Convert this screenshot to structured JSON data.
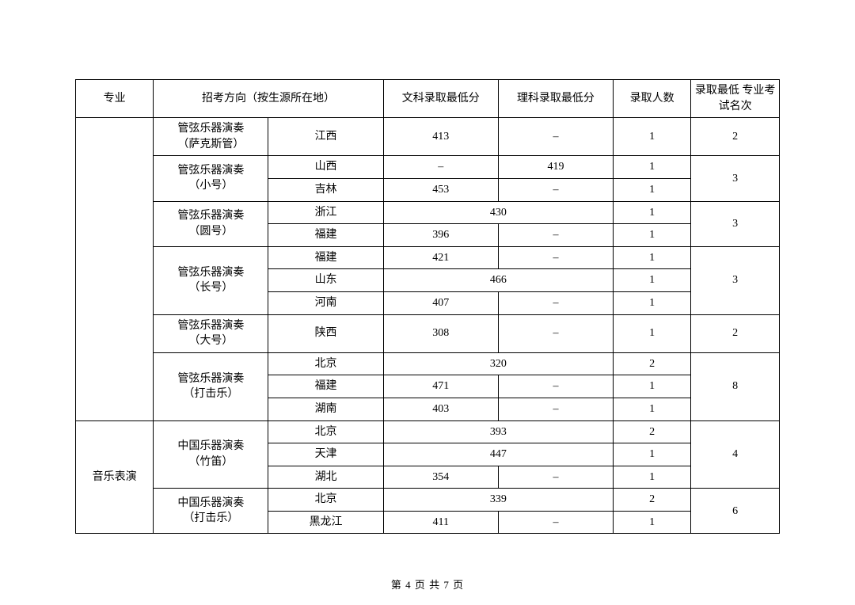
{
  "header": {
    "major": "专业",
    "direction": "招考方向（按生源所在地）",
    "wenke": "文科录取最低分",
    "like": "理科录取最低分",
    "admit": "录取人数",
    "rank": "录取最低\n专业考试名次"
  },
  "groups": [
    {
      "name": "管弦乐器演奏\n（萨克斯管）",
      "rank": "2",
      "rows": [
        {
          "prov": "江西",
          "wen": "413",
          "li": "–",
          "merged": false,
          "num": "1"
        }
      ]
    },
    {
      "name": "管弦乐器演奏\n（小号）",
      "rank": "3",
      "rows": [
        {
          "prov": "山西",
          "wen": "–",
          "li": "419",
          "merged": false,
          "num": "1"
        },
        {
          "prov": "吉林",
          "wen": "453",
          "li": "–",
          "merged": false,
          "num": "1"
        }
      ]
    },
    {
      "name": "管弦乐器演奏\n（圆号）",
      "rank": "3",
      "rows": [
        {
          "prov": "浙江",
          "wen": "430",
          "li": "",
          "merged": true,
          "num": "1"
        },
        {
          "prov": "福建",
          "wen": "396",
          "li": "–",
          "merged": false,
          "num": "1"
        }
      ]
    },
    {
      "name": "管弦乐器演奏\n（长号）",
      "rank": "3",
      "rows": [
        {
          "prov": "福建",
          "wen": "421",
          "li": "–",
          "merged": false,
          "num": "1"
        },
        {
          "prov": "山东",
          "wen": "466",
          "li": "",
          "merged": true,
          "num": "1"
        },
        {
          "prov": "河南",
          "wen": "407",
          "li": "–",
          "merged": false,
          "num": "1"
        }
      ]
    },
    {
      "name": "管弦乐器演奏\n（大号）",
      "rank": "2",
      "rows": [
        {
          "prov": "陕西",
          "wen": "308",
          "li": "–",
          "merged": false,
          "num": "1"
        }
      ]
    },
    {
      "name": "管弦乐器演奏\n（打击乐）",
      "rank": "8",
      "rows": [
        {
          "prov": "北京",
          "wen": "320",
          "li": "",
          "merged": true,
          "num": "2"
        },
        {
          "prov": "福建",
          "wen": "471",
          "li": "–",
          "merged": false,
          "num": "1"
        },
        {
          "prov": "湖南",
          "wen": "403",
          "li": "–",
          "merged": false,
          "num": "1"
        }
      ]
    }
  ],
  "majorLabel": "音乐表演",
  "majorGroups": [
    {
      "name": "中国乐器演奏\n（竹笛）",
      "rank": "4",
      "rows": [
        {
          "prov": "北京",
          "wen": "393",
          "li": "",
          "merged": true,
          "num": "2"
        },
        {
          "prov": "天津",
          "wen": "447",
          "li": "",
          "merged": true,
          "num": "1"
        },
        {
          "prov": "湖北",
          "wen": "354",
          "li": "–",
          "merged": false,
          "num": "1"
        }
      ]
    },
    {
      "name": "中国乐器演奏\n（打击乐）",
      "rank": "6",
      "rows": [
        {
          "prov": "北京",
          "wen": "339",
          "li": "",
          "merged": true,
          "num": "2"
        },
        {
          "prov": "黑龙江",
          "wen": "411",
          "li": "–",
          "merged": false,
          "num": "1"
        }
      ]
    }
  ],
  "footer": "第 4 页 共 7 页",
  "style": {
    "border_color": "#000000",
    "background_color": "#ffffff",
    "text_color": "#000000",
    "font_family": "SimSun",
    "cell_fontsize": 14,
    "footer_fontsize": 13
  }
}
